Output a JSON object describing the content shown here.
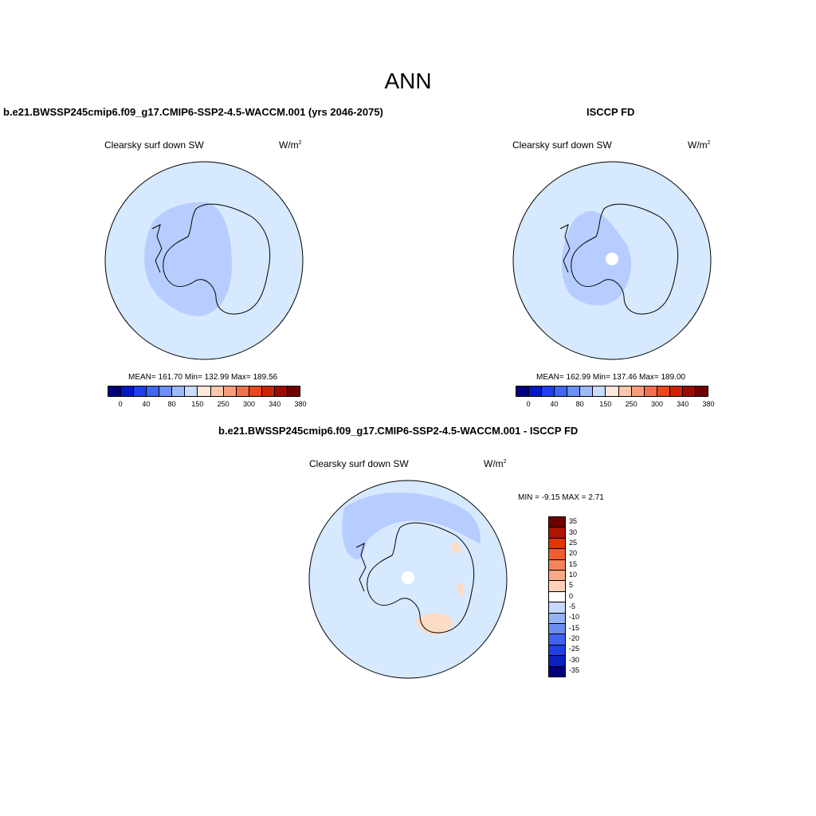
{
  "main_title": "ANN",
  "panels": [
    {
      "title": "b.e21.BWSSP245cmip6.f09_g17.CMIP6-SSP2-4.5-WACCM.001 (yrs 2046-2075)",
      "variable": "Clearsky surf down SW",
      "units_base": "W/m",
      "units_sup": "2",
      "stats": "MEAN= 161.70  Min= 132.99  Max= 189.56"
    },
    {
      "title": "ISCCP FD",
      "variable": "Clearsky surf down SW",
      "units_base": "W/m",
      "units_sup": "2",
      "stats": "MEAN= 162.99  Min= 137.46  Max= 189.00"
    },
    {
      "title": "b.e21.BWSSP245cmip6.f09_g17.CMIP6-SSP2-4.5-WACCM.001 - ISCCP FD",
      "variable": "Clearsky surf down SW",
      "units_base": "W/m",
      "units_sup": "2",
      "stats": "MIN =  -9.15 MAX =   2.71"
    }
  ],
  "colors": {
    "ocean_fill": "#d6e9ff",
    "low_band": "#b7cdff",
    "warm_patch": "#fcdcc6",
    "coast": "#000000",
    "seq_palette": [
      "#00007f",
      "#0019c0",
      "#1e40e6",
      "#3f66f2",
      "#6a8ff5",
      "#9db9f9",
      "#c9dcfd",
      "#ffe8dc",
      "#fcc9ae",
      "#f89d7c",
      "#f2714c",
      "#e8481e",
      "#c92606",
      "#9c0a00",
      "#6e0000"
    ],
    "div_palette": [
      "#6e0000",
      "#b01300",
      "#e23600",
      "#ef5e2e",
      "#f6845a",
      "#faa886",
      "#fdd2b8",
      "#ffffff",
      "#c6d8fb",
      "#94b3f6",
      "#6a8df2",
      "#3f63ef",
      "#1f40e3",
      "#0a20c1",
      "#00007f"
    ]
  },
  "colorbar_horizontal": {
    "labels": [
      "0",
      "40",
      "80",
      "150",
      "250",
      "300",
      "340",
      "380"
    ]
  },
  "colorbar_vertical": {
    "labels": [
      "35",
      "30",
      "25",
      "20",
      "15",
      "10",
      "5",
      "0",
      "-5",
      "-10",
      "-15",
      "-20",
      "-25",
      "-30",
      "-35"
    ]
  }
}
